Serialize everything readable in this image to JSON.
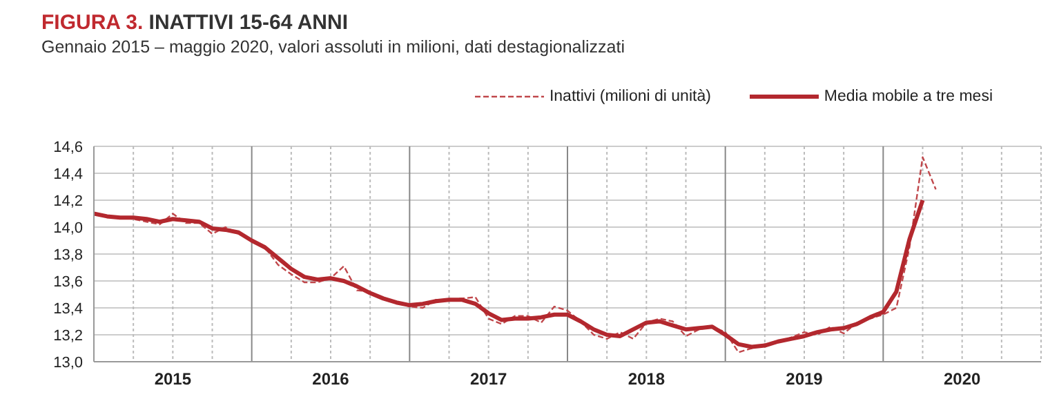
{
  "chart_data": {
    "type": "line",
    "title": "FIGURA 3. INATTIVI 15-64 ANNI",
    "subtitle": "Gennaio 2015 – maggio 2020, valori assoluti in milioni, dati destagionalizzati",
    "x": [
      "2015-01",
      "2015-02",
      "2015-03",
      "2015-04",
      "2015-05",
      "2015-06",
      "2015-07",
      "2015-08",
      "2015-09",
      "2015-10",
      "2015-11",
      "2015-12",
      "2016-01",
      "2016-02",
      "2016-03",
      "2016-04",
      "2016-05",
      "2016-06",
      "2016-07",
      "2016-08",
      "2016-09",
      "2016-10",
      "2016-11",
      "2016-12",
      "2017-01",
      "2017-02",
      "2017-03",
      "2017-04",
      "2017-05",
      "2017-06",
      "2017-07",
      "2017-08",
      "2017-09",
      "2017-10",
      "2017-11",
      "2017-12",
      "2018-01",
      "2018-02",
      "2018-03",
      "2018-04",
      "2018-05",
      "2018-06",
      "2018-07",
      "2018-08",
      "2018-09",
      "2018-10",
      "2018-11",
      "2018-12",
      "2019-01",
      "2019-02",
      "2019-03",
      "2019-04",
      "2019-05",
      "2019-06",
      "2019-07",
      "2019-08",
      "2019-09",
      "2019-10",
      "2019-11",
      "2019-12",
      "2020-01",
      "2020-02",
      "2020-03",
      "2020-04",
      "2020-05"
    ],
    "series": [
      {
        "name": "Inattivi (milioni di unità)",
        "color": "#c0474b",
        "line_style": "dashed",
        "values": [
          14.1,
          14.08,
          14.07,
          14.06,
          14.04,
          14.02,
          14.1,
          14.03,
          14.03,
          13.95,
          14.0,
          13.95,
          13.9,
          13.85,
          13.72,
          13.65,
          13.59,
          13.59,
          13.62,
          13.71,
          13.53,
          13.52,
          13.47,
          13.44,
          13.41,
          13.4,
          13.46,
          13.46,
          13.47,
          13.48,
          13.32,
          13.28,
          13.34,
          13.34,
          13.29,
          13.41,
          13.38,
          13.3,
          13.2,
          13.17,
          13.22,
          13.17,
          13.29,
          13.32,
          13.3,
          13.19,
          13.24,
          13.26,
          13.22,
          13.07,
          13.1,
          13.13,
          13.14,
          13.18,
          13.22,
          13.2,
          13.26,
          13.21,
          13.29,
          13.32,
          13.35,
          13.4,
          13.85,
          14.52,
          14.28
        ]
      },
      {
        "name": "Media mobile a tre mesi",
        "color": "#b3282e",
        "line_style": "solid",
        "values": [
          14.1,
          14.08,
          14.07,
          14.07,
          14.06,
          14.04,
          14.06,
          14.05,
          14.04,
          13.99,
          13.98,
          13.96,
          13.9,
          13.85,
          13.77,
          13.69,
          13.63,
          13.61,
          13.62,
          13.6,
          13.56,
          13.51,
          13.47,
          13.44,
          13.42,
          13.43,
          13.45,
          13.46,
          13.46,
          13.43,
          13.36,
          13.31,
          13.32,
          13.32,
          13.33,
          13.35,
          13.35,
          13.3,
          13.24,
          13.2,
          13.19,
          13.24,
          13.29,
          13.3,
          13.27,
          13.24,
          13.25,
          13.26,
          13.2,
          13.13,
          13.11,
          13.12,
          13.15,
          13.17,
          13.19,
          13.22,
          13.24,
          13.25,
          13.28,
          13.33,
          13.37,
          13.52,
          13.91,
          14.2,
          null
        ]
      }
    ],
    "xlim": [
      "2015-01",
      "2021-01"
    ],
    "xticks": [
      {
        "value": "2015-04",
        "label": null
      },
      {
        "value": "2015-07",
        "label": "2015"
      },
      {
        "value": "2015-10",
        "label": null
      },
      {
        "value": "2016-01",
        "label": null
      },
      {
        "value": "2016-04",
        "label": null
      },
      {
        "value": "2016-07",
        "label": "2016"
      },
      {
        "value": "2016-10",
        "label": null
      },
      {
        "value": "2017-01",
        "label": null
      },
      {
        "value": "2017-04",
        "label": null
      },
      {
        "value": "2017-07",
        "label": "2017"
      },
      {
        "value": "2017-10",
        "label": null
      },
      {
        "value": "2018-01",
        "label": null
      },
      {
        "value": "2018-04",
        "label": null
      },
      {
        "value": "2018-07",
        "label": "2018"
      },
      {
        "value": "2018-10",
        "label": null
      },
      {
        "value": "2019-01",
        "label": null
      },
      {
        "value": "2019-04",
        "label": null
      },
      {
        "value": "2019-07",
        "label": "2019"
      },
      {
        "value": "2019-10",
        "label": null
      },
      {
        "value": "2020-01",
        "label": null
      },
      {
        "value": "2020-04",
        "label": null
      },
      {
        "value": "2020-07",
        "label": "2020"
      },
      {
        "value": "2020-10",
        "label": null
      }
    ],
    "ylim": [
      13.0,
      14.6
    ],
    "yticks": [
      {
        "value": 13.0,
        "label": "13,0"
      },
      {
        "value": 13.2,
        "label": "13,2"
      },
      {
        "value": 13.4,
        "label": "13,4"
      },
      {
        "value": 13.6,
        "label": "13,6"
      },
      {
        "value": 13.8,
        "label": "13,8"
      },
      {
        "value": 14.0,
        "label": "14,0"
      },
      {
        "value": 14.2,
        "label": "14,2"
      },
      {
        "value": 14.4,
        "label": "14,4"
      },
      {
        "value": 14.6,
        "label": "14,6"
      }
    ],
    "grid": true,
    "legend": "top right",
    "marker": "none"
  }
}
